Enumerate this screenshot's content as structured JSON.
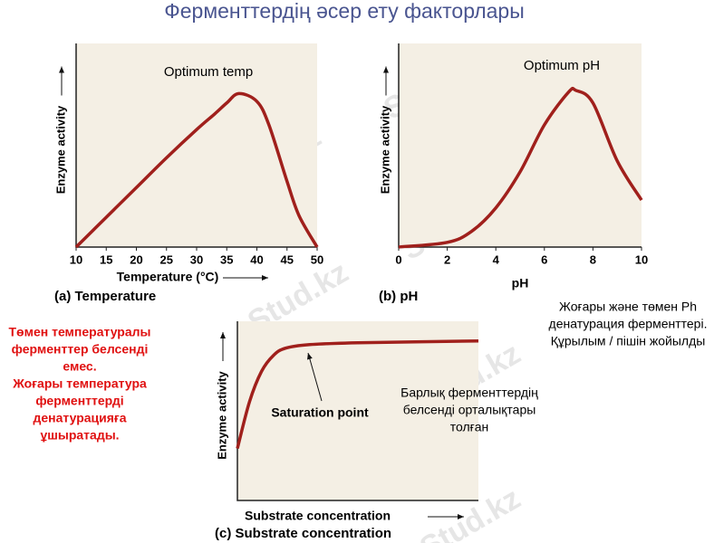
{
  "title": "Ферменттердің әсер ету факторлары",
  "watermark": "Stud.kz",
  "left_note": [
    "Төмен температуралы",
    "ферменттер белсенді",
    "емес.",
    "Жоғары температура",
    "ферменттерді",
    "денатурацияға",
    "ұшыратады."
  ],
  "right_note": [
    "Жоғары және төмен Ph",
    "денатурация ферменттері.",
    "Құрылым / пішін жойылды"
  ],
  "chart_data": [
    {
      "type": "line",
      "caption": "(a) Temperature",
      "xlabel": "Temperature (°C)",
      "ylabel": "Enzyme activity",
      "annotation": "Optimum temp",
      "color": "#a0201c",
      "x": [
        10,
        15,
        20,
        25,
        30,
        33,
        35,
        37,
        40,
        42,
        45,
        47,
        50
      ],
      "values": [
        0,
        19,
        38,
        57,
        75,
        85,
        92,
        98,
        93,
        78,
        42,
        20,
        0
      ],
      "xlim": [
        10,
        50
      ],
      "ylim": [
        0,
        130
      ],
      "xticks": [
        10,
        15,
        20,
        25,
        30,
        35,
        40,
        45,
        50
      ]
    },
    {
      "type": "line",
      "caption": "(b) pH",
      "xlabel": "pH",
      "ylabel": "Enzyme activity",
      "annotation": "Optimum pH",
      "color": "#a0201c",
      "x": [
        0,
        2,
        3,
        4,
        5,
        6,
        7,
        7.3,
        8,
        9,
        10
      ],
      "values": [
        0,
        3,
        10,
        25,
        48,
        78,
        99,
        100,
        92,
        55,
        30
      ],
      "xlim": [
        0,
        10
      ],
      "ylim": [
        0,
        130
      ],
      "xticks": [
        0,
        2,
        4,
        6,
        8,
        10
      ]
    },
    {
      "type": "line",
      "caption": "(c) Substrate concentration",
      "xlabel": "Substrate concentration",
      "ylabel": "Enzyme activity",
      "annotation": "Saturation point",
      "note": [
        "Барлық ферменттердің",
        "белсенді орталықтары",
        "толған"
      ],
      "color": "#a0201c",
      "x": [
        0,
        5,
        10,
        15,
        20,
        30,
        50,
        100
      ],
      "values": [
        29,
        55,
        72,
        81,
        85,
        87,
        88,
        89
      ],
      "xlim": [
        0,
        100
      ],
      "ylim": [
        0,
        100
      ]
    }
  ]
}
